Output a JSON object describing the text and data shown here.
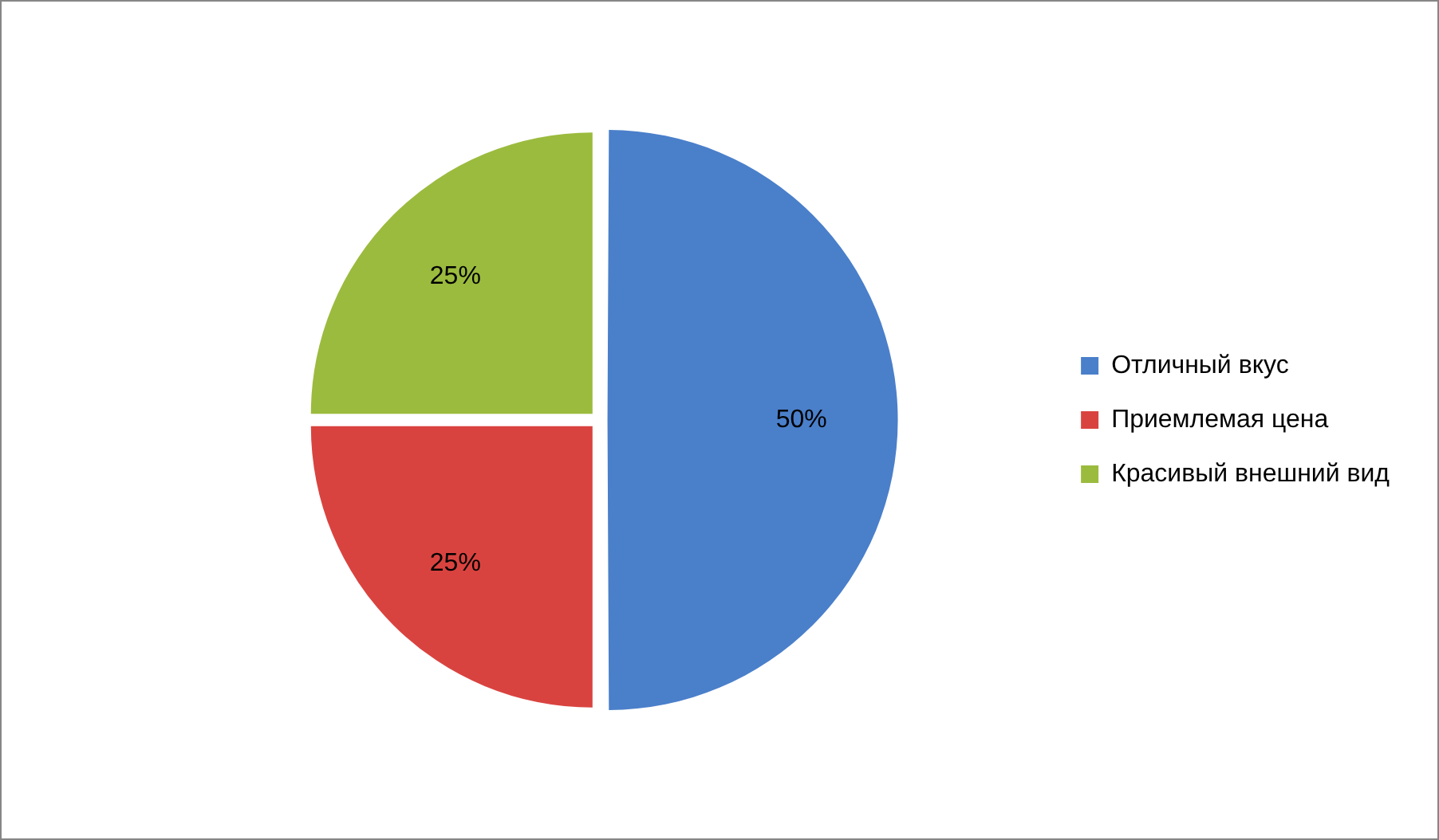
{
  "chart_data": {
    "type": "pie",
    "categories": [
      "Отличный вкус",
      "Приемлемая цена",
      "Красивый внешний вид"
    ],
    "values": [
      50,
      25,
      25
    ],
    "colors": [
      "#4a7fca",
      "#d9433f",
      "#9bbb3e"
    ],
    "value_labels": [
      "50%",
      "25%",
      "25%"
    ],
    "legend": "right"
  }
}
